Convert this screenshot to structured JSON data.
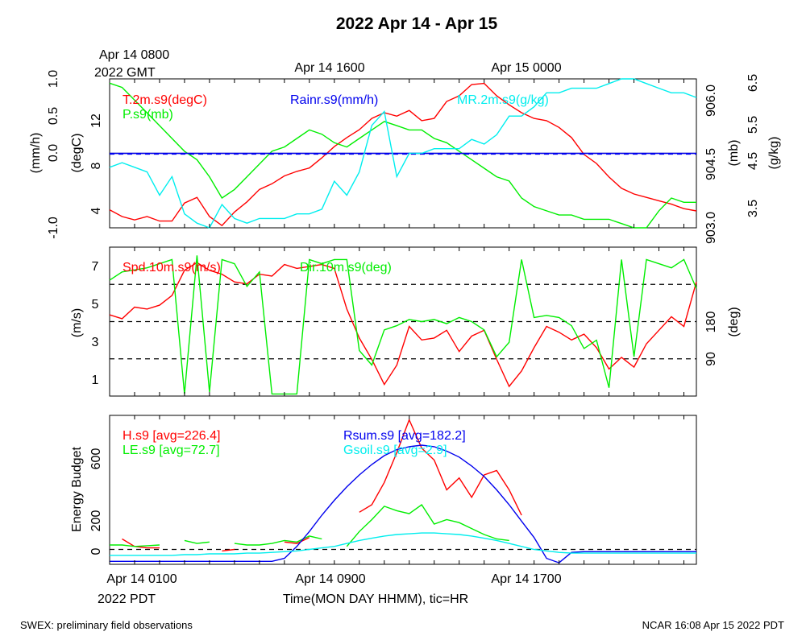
{
  "title": "2022 Apr 14 - Apr 15",
  "gmt_label_line1": "Apr 14 0800",
  "gmt_label_line2": "2022 GMT",
  "gmt_ticks": [
    "Apr 14 1600",
    "Apr 15 0000"
  ],
  "pdt_ticks": [
    "Apr 14 0100",
    "Apr 14 0900",
    "Apr 14 1700"
  ],
  "pdt_year": "2022 PDT",
  "xlabel": "Time(MON DAY HHMM), tic=HR",
  "footer_left": "SWEX: preliminary field observations",
  "footer_right": "NCAR 16:08 Apr 15 2022 PDT",
  "colors": {
    "red": "#ff0000",
    "green": "#00ee00",
    "blue": "#0000ee",
    "cyan": "#00eeee"
  },
  "chart_data": [
    {
      "type": "line",
      "panel": "meteorology",
      "x_hours_pdt_start": 0,
      "x_hours_pdt_end": 23.5,
      "legend": [
        "T.2m.s9(degC)",
        "P.s9(mb)",
        "Rainr.s9(mm/h)",
        "MR.2m.s9(g/kg)"
      ],
      "axes": {
        "rain": {
          "label": "(mm/h)",
          "ticks": [
            "-1.0",
            "0.0",
            "0.5",
            "1.0"
          ],
          "ylim": [
            -1,
            1
          ]
        },
        "temp": {
          "label": "(degC)",
          "ticks": [
            "4",
            "8",
            "12"
          ],
          "ylim": [
            2.8,
            16
          ]
        },
        "pres": {
          "label": "(mb)",
          "ticks": [
            "903.0",
            "904.5",
            "906.0"
          ],
          "ylim": [
            903,
            906.5
          ]
        },
        "mr": {
          "label": "(g/kg)",
          "ticks": [
            "3.5",
            "4.5",
            "5.5",
            "6.5"
          ],
          "ylim": [
            3.3,
            6.5
          ]
        }
      },
      "series": [
        {
          "name": "T.2m.s9(degC)",
          "axis": "temp",
          "x": [
            0,
            0.5,
            1,
            1.5,
            2,
            2.5,
            3,
            3.5,
            4,
            4.5,
            5,
            5.5,
            6,
            6.5,
            7,
            7.5,
            8,
            8.5,
            9,
            9.5,
            10,
            10.5,
            11,
            11.5,
            12,
            12.5,
            13,
            13.5,
            14,
            14.5,
            15,
            15.5,
            16,
            16.5,
            17,
            17.5,
            18,
            18.5,
            19,
            19.5,
            20,
            20.5,
            21,
            21.5,
            22,
            22.5,
            23,
            23.5
          ],
          "y": [
            4.4,
            3.8,
            3.5,
            3.8,
            3.4,
            3.4,
            5.0,
            5.5,
            3.8,
            3.0,
            4.2,
            5.1,
            6.2,
            6.7,
            7.4,
            7.8,
            8.1,
            9.0,
            10.0,
            10.8,
            11.5,
            12.5,
            13.0,
            12.7,
            13.2,
            12.3,
            12.5,
            14.0,
            14.5,
            15.5,
            15.6,
            14.5,
            13.7,
            13.0,
            12.5,
            12.3,
            11.7,
            10.8,
            9.3,
            8.5,
            7.3,
            6.3,
            5.8,
            5.5,
            5.2,
            4.9,
            4.5,
            4.3
          ]
        },
        {
          "name": "P.s9(mb)",
          "axis": "pres",
          "x": [
            0,
            0.5,
            1,
            1.5,
            2,
            2.5,
            3,
            3.5,
            4,
            4.5,
            5,
            5.5,
            6,
            6.5,
            7,
            7.5,
            8,
            8.5,
            9,
            9.5,
            10,
            10.5,
            11,
            11.5,
            12,
            12.5,
            13,
            13.5,
            14,
            14.5,
            15,
            15.5,
            16,
            16.5,
            17,
            17.5,
            18,
            18.5,
            19,
            19.5,
            20,
            20.5,
            21,
            21.5,
            22,
            22.5,
            23,
            23.5
          ],
          "y": [
            906.4,
            906.3,
            906.0,
            905.7,
            905.4,
            905.1,
            904.8,
            904.6,
            904.2,
            903.7,
            903.9,
            904.2,
            904.5,
            904.8,
            904.9,
            905.1,
            905.3,
            905.2,
            905.0,
            904.9,
            905.1,
            905.3,
            905.5,
            905.4,
            905.3,
            905.3,
            905.1,
            905.0,
            904.8,
            904.6,
            904.4,
            904.2,
            904.1,
            903.7,
            903.5,
            903.4,
            903.3,
            903.3,
            903.2,
            903.2,
            903.2,
            903.1,
            903.0,
            903.0,
            903.4,
            903.7,
            903.6,
            903.6
          ]
        },
        {
          "name": "Rainr.s9(mm/h)",
          "axis": "rain",
          "x": [
            0,
            23.5
          ],
          "y": [
            0.0,
            0.0
          ]
        },
        {
          "name": "MR.2m.s9(g/kg)",
          "axis": "mr",
          "x": [
            0,
            0.5,
            1,
            1.5,
            2,
            2.5,
            3,
            3.5,
            4,
            4.5,
            5,
            5.5,
            6,
            6.5,
            7,
            7.5,
            8,
            8.5,
            9,
            9.5,
            10,
            10.5,
            11,
            11.5,
            12,
            12.5,
            13,
            13.5,
            14,
            14.5,
            15,
            15.5,
            16,
            16.5,
            17,
            17.5,
            18,
            18.5,
            19,
            19.5,
            20,
            20.5,
            21,
            21.5,
            22,
            22.5,
            23,
            23.5
          ],
          "y": [
            4.6,
            4.7,
            4.6,
            4.5,
            4.0,
            4.4,
            3.6,
            3.4,
            3.3,
            3.8,
            3.5,
            3.4,
            3.5,
            3.5,
            3.5,
            3.6,
            3.6,
            3.7,
            4.3,
            4.0,
            4.5,
            5.5,
            5.8,
            4.4,
            4.9,
            4.9,
            5.0,
            5.0,
            5.0,
            5.2,
            5.1,
            5.3,
            5.7,
            5.7,
            5.9,
            6.2,
            6.2,
            6.3,
            6.3,
            6.3,
            6.4,
            6.5,
            6.5,
            6.4,
            6.3,
            6.2,
            6.2,
            6.1
          ]
        }
      ]
    },
    {
      "type": "line",
      "panel": "wind",
      "legend": [
        "Spd.10m.s9(m/s)",
        "Dir.10m.s9(deg)"
      ],
      "axes": {
        "spd": {
          "label": "(m/s)",
          "ticks": [
            "1",
            "3",
            "5",
            "7"
          ],
          "ylim": [
            0.1,
            7.8
          ]
        },
        "dir": {
          "label": "(deg)",
          "ticks": [
            "90",
            "180"
          ],
          "ylim": [
            0,
            360
          ]
        }
      },
      "reference_lines_deg": [
        90,
        180,
        270
      ],
      "series": [
        {
          "name": "Spd.10m.s9(m/s)",
          "axis": "spd",
          "x": [
            0,
            0.5,
            1,
            1.5,
            2,
            2.5,
            3,
            3.5,
            4,
            4.5,
            5,
            5.5,
            6,
            6.5,
            7,
            7.5,
            8,
            8.5,
            9,
            9.5,
            10,
            10.5,
            11,
            11.5,
            12,
            12.5,
            13,
            13.5,
            14,
            14.5,
            15,
            15.5,
            16,
            16.5,
            17,
            17.5,
            18,
            18.5,
            19,
            19.5,
            20,
            20.5,
            21,
            21.5,
            22,
            22.5,
            23,
            23.5
          ],
          "y": [
            4.3,
            4.1,
            4.7,
            4.6,
            4.8,
            5.3,
            6.6,
            7.0,
            6.6,
            6.4,
            6.0,
            5.9,
            6.4,
            6.3,
            6.9,
            6.7,
            6.8,
            6.9,
            6.7,
            4.6,
            3.1,
            2.0,
            0.7,
            1.7,
            3.7,
            3.0,
            3.1,
            3.5,
            2.4,
            3.2,
            3.5,
            2.0,
            0.6,
            1.4,
            2.6,
            3.7,
            3.4,
            3.0,
            3.3,
            2.6,
            1.5,
            2.1,
            1.6,
            2.8,
            3.5,
            4.2,
            3.7,
            6.0
          ]
        },
        {
          "name": "Dir.10m.s9(deg)",
          "axis": "dir",
          "x": [
            0,
            0.5,
            1,
            1.5,
            2,
            2.5,
            3,
            3.5,
            4,
            4.5,
            5,
            5.5,
            6,
            6.5,
            7,
            7.5,
            8,
            8.5,
            9,
            9.5,
            10,
            10.5,
            11,
            11.5,
            12,
            12.5,
            13,
            13.5,
            14,
            14.5,
            15,
            15.5,
            16,
            16.5,
            17,
            17.5,
            18,
            18.5,
            19,
            19.5,
            20,
            20.5,
            21,
            21.5,
            22,
            22.5,
            23,
            23.5
          ],
          "y": [
            280,
            300,
            305,
            310,
            320,
            330,
            5,
            340,
            10,
            330,
            320,
            265,
            300,
            5,
            5,
            5,
            330,
            320,
            330,
            330,
            110,
            75,
            160,
            170,
            185,
            180,
            185,
            175,
            190,
            180,
            160,
            95,
            130,
            330,
            190,
            195,
            190,
            170,
            115,
            135,
            20,
            330,
            95,
            330,
            320,
            310,
            330,
            260
          ]
        }
      ]
    },
    {
      "type": "line",
      "panel": "energy_budget",
      "ylabel": "Energy Budget",
      "ticks": [
        "0",
        "200",
        "600"
      ],
      "ylim": [
        -100,
        900
      ],
      "reference_lines": [
        0
      ],
      "legend": [
        "H.s9 [avg=226.4]",
        "LE.s9 [avg=72.7]",
        "Rsum.s9 [avg=182.2]",
        "Gsoil.s9 [avg=2.9]"
      ],
      "series": [
        {
          "name": "H.s9 [avg=226.4]",
          "x": [
            0,
            0.5,
            1,
            1.5,
            2,
            2.5,
            3,
            3.5,
            4,
            4.5,
            5,
            5.5,
            6,
            6.5,
            7,
            7.5,
            8,
            8.5,
            9,
            9.5,
            10,
            10.5,
            11,
            11.5,
            12,
            12.5,
            13,
            13.5,
            14,
            14.5,
            15,
            15.5,
            16,
            16.5,
            17,
            17.5,
            18,
            18.5,
            19,
            19.5,
            20,
            20.5,
            21,
            21.5,
            22,
            22.5,
            23,
            23.5
          ],
          "y": [
            null,
            70,
            20,
            10,
            10,
            null,
            null,
            null,
            null,
            -10,
            0,
            null,
            null,
            null,
            50,
            40,
            80,
            null,
            null,
            null,
            250,
            300,
            450,
            650,
            870,
            680,
            600,
            400,
            480,
            350,
            500,
            530,
            400,
            230,
            null,
            null,
            null,
            null,
            null,
            null,
            null,
            null,
            null,
            null,
            null,
            null,
            null,
            null
          ]
        },
        {
          "name": "LE.s9 [avg=72.7]",
          "x": [
            0,
            0.5,
            1,
            1.5,
            2,
            2.5,
            3,
            3.5,
            4,
            4.5,
            5,
            5.5,
            6,
            6.5,
            7,
            7.5,
            8,
            8.5,
            9,
            9.5,
            10,
            10.5,
            11,
            11.5,
            12,
            12.5,
            13,
            13.5,
            14,
            14.5,
            15,
            15.5,
            16,
            16.5,
            17,
            17.5,
            18,
            18.5,
            19,
            19.5,
            20,
            20.5,
            21,
            21.5,
            22,
            22.5,
            23,
            23.5
          ],
          "y": [
            30,
            30,
            20,
            25,
            30,
            null,
            60,
            40,
            50,
            null,
            40,
            30,
            30,
            40,
            60,
            50,
            90,
            70,
            null,
            20,
            120,
            200,
            290,
            260,
            240,
            300,
            170,
            200,
            180,
            140,
            100,
            70,
            60,
            null,
            40,
            null,
            null,
            null,
            null,
            null,
            null,
            null,
            null,
            null,
            null,
            null,
            null,
            null
          ]
        },
        {
          "name": "Rsum.s9 [avg=182.2]",
          "x": [
            0,
            0.5,
            1,
            1.5,
            2,
            2.5,
            3,
            3.5,
            4,
            4.5,
            5,
            5.5,
            6,
            6.5,
            7,
            7.5,
            8,
            8.5,
            9,
            9.5,
            10,
            10.5,
            11,
            11.5,
            12,
            12.5,
            13,
            13.5,
            14,
            14.5,
            15,
            15.5,
            16,
            16.5,
            17,
            17.5,
            18,
            18.5,
            19,
            19.5,
            20,
            20.5,
            21,
            21.5,
            22,
            22.5,
            23,
            23.5
          ],
          "y": [
            -80,
            -80,
            -80,
            -80,
            -80,
            -80,
            -80,
            -80,
            -80,
            -80,
            -80,
            -80,
            -80,
            -80,
            -60,
            20,
            120,
            230,
            330,
            420,
            500,
            570,
            630,
            670,
            690,
            700,
            690,
            660,
            620,
            560,
            490,
            400,
            300,
            190,
            80,
            -60,
            -90,
            -20,
            -15,
            -15,
            -15,
            -15,
            -15,
            -15,
            -15,
            -15,
            -15,
            -15
          ]
        },
        {
          "name": "Gsoil.s9 [avg=2.9]",
          "x": [
            0,
            0.5,
            1,
            1.5,
            2,
            2.5,
            3,
            3.5,
            4,
            4.5,
            5,
            5.5,
            6,
            6.5,
            7,
            7.5,
            8,
            8.5,
            9,
            9.5,
            10,
            10.5,
            11,
            11.5,
            12,
            12.5,
            13,
            13.5,
            14,
            14.5,
            15,
            15.5,
            16,
            16.5,
            17,
            17.5,
            18,
            18.5,
            19,
            19.5,
            20,
            20.5,
            21,
            21.5,
            22,
            22.5,
            23,
            23.5
          ],
          "y": [
            -40,
            -40,
            -40,
            -40,
            -40,
            -40,
            -35,
            -35,
            -30,
            -30,
            -30,
            -25,
            -25,
            -20,
            -15,
            -10,
            0,
            10,
            20,
            40,
            60,
            75,
            90,
            100,
            105,
            110,
            110,
            105,
            100,
            90,
            75,
            60,
            40,
            20,
            0,
            -10,
            -20,
            -25,
            -25,
            -25,
            -25,
            -25,
            -25,
            -25,
            -25,
            -25,
            -25,
            -25
          ]
        }
      ]
    }
  ]
}
